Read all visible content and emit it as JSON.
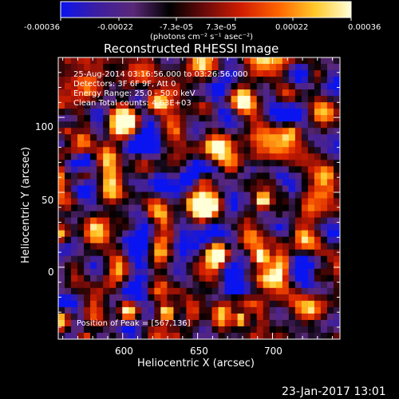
{
  "colorbar": {
    "ticks": [
      "-0.00036",
      "-0.00022",
      "-7.3e-05",
      "7.3e-05",
      "0.00022",
      "0.00036"
    ],
    "unit_label": "(photons cm⁻² s⁻¹ asec⁻²)",
    "colors": [
      "#0a14f0",
      "#3c1ea0",
      "#5a2878",
      "#000000",
      "#6e0a0a",
      "#d21e00",
      "#ff6400",
      "#ffc828",
      "#ffffd8"
    ],
    "range": [
      -0.00036,
      0.00036
    ]
  },
  "plot": {
    "title": "Reconstructed RHESSI Image",
    "xlabel": "Heliocentric X (arcsec)",
    "ylabel": "Heliocentric Y (arcsec)",
    "x_ticks": [
      "600",
      "650",
      "700"
    ],
    "y_ticks": [
      "100",
      "50",
      "0"
    ],
    "xlim": [
      557,
      745
    ],
    "ylim": [
      -48,
      140
    ]
  },
  "annotations": {
    "time_range": "25-Aug-2014 03:16:56.000 to 03:26:56.000",
    "detectors": "Detectors: 3F 6F 9F, Att 0",
    "energy_range": "Energy Range: 25.0 - 50.0 keV",
    "method": "Clean     Total counts: 4.63E+03",
    "peak_position": "Position of Peak = [567,136]"
  },
  "footer": {
    "timestamp": "23-Jan-2017 13:01"
  }
}
